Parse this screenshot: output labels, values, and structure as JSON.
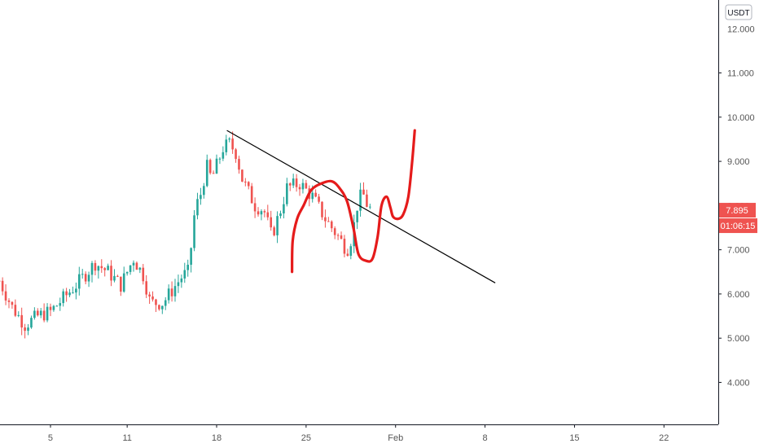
{
  "chart_data": {
    "type": "candlestick",
    "currency": "USDT",
    "y_ticks": [
      "4.000",
      "5.000",
      "6.000",
      "7.000",
      "8.000",
      "9.000",
      "10.000",
      "11.000"
    ],
    "y_top_label_partial": "12.000",
    "ylim": [
      3.05,
      12.65
    ],
    "x_ticks": [
      {
        "label": "5",
        "day": 5
      },
      {
        "label": "11",
        "day": 11
      },
      {
        "label": "18",
        "day": 18
      },
      {
        "label": "25",
        "day": 25
      },
      {
        "label": "Feb",
        "day": 32
      },
      {
        "label": "8",
        "day": 39
      },
      {
        "label": "15",
        "day": 46
      },
      {
        "label": "22",
        "day": 53
      }
    ],
    "xlim": [
      1.05,
      57.25
    ],
    "last_price": "7.895",
    "last_price_value": 7.895,
    "countdown": "01:06:15",
    "price_anchors": [
      {
        "day": 1.0,
        "v": 6.3
      },
      {
        "day": 2.0,
        "v": 5.7
      },
      {
        "day": 3.0,
        "v": 5.3
      },
      {
        "day": 4.0,
        "v": 5.5
      },
      {
        "day": 5.0,
        "v": 5.6
      },
      {
        "day": 6.0,
        "v": 5.9
      },
      {
        "day": 7.0,
        "v": 6.2
      },
      {
        "day": 8.5,
        "v": 6.7
      },
      {
        "day": 9.5,
        "v": 6.5
      },
      {
        "day": 10.5,
        "v": 6.2
      },
      {
        "day": 11.5,
        "v": 6.8
      },
      {
        "day": 12.3,
        "v": 6.4
      },
      {
        "day": 12.8,
        "v": 5.8
      },
      {
        "day": 13.8,
        "v": 5.8
      },
      {
        "day": 14.8,
        "v": 6.2
      },
      {
        "day": 15.3,
        "v": 6.4
      },
      {
        "day": 15.8,
        "v": 6.5
      },
      {
        "day": 16.3,
        "v": 7.9
      },
      {
        "day": 16.8,
        "v": 8.3
      },
      {
        "day": 17.2,
        "v": 8.9
      },
      {
        "day": 17.6,
        "v": 8.6
      },
      {
        "day": 18.0,
        "v": 8.9
      },
      {
        "day": 18.5,
        "v": 9.3
      },
      {
        "day": 19.0,
        "v": 9.4
      },
      {
        "day": 19.5,
        "v": 9.2
      },
      {
        "day": 20.0,
        "v": 8.6
      },
      {
        "day": 21.0,
        "v": 8.0
      },
      {
        "day": 21.7,
        "v": 7.9
      },
      {
        "day": 22.3,
        "v": 7.3
      },
      {
        "day": 23.0,
        "v": 7.9
      },
      {
        "day": 23.5,
        "v": 8.4
      },
      {
        "day": 24.5,
        "v": 8.5
      },
      {
        "day": 25.5,
        "v": 8.2
      },
      {
        "day": 26.5,
        "v": 7.7
      },
      {
        "day": 27.5,
        "v": 7.3
      },
      {
        "day": 28.2,
        "v": 7.0
      },
      {
        "day": 28.6,
        "v": 7.3
      },
      {
        "day": 29.0,
        "v": 8.0
      },
      {
        "day": 29.4,
        "v": 8.3
      },
      {
        "day": 29.8,
        "v": 8.0
      },
      {
        "day": 30.1,
        "v": 7.895
      }
    ],
    "trendline": {
      "start": {
        "day": 18.8,
        "v": 9.7
      },
      "end": {
        "day": 39.8,
        "v": 6.25
      }
    },
    "drawing_points": [
      {
        "day": 23.9,
        "v": 6.5
      },
      {
        "day": 23.95,
        "v": 7.2
      },
      {
        "day": 24.3,
        "v": 7.7
      },
      {
        "day": 24.8,
        "v": 8.0
      },
      {
        "day": 25.4,
        "v": 8.35
      },
      {
        "day": 26.2,
        "v": 8.5
      },
      {
        "day": 27.0,
        "v": 8.55
      },
      {
        "day": 27.6,
        "v": 8.4
      },
      {
        "day": 28.2,
        "v": 8.1
      },
      {
        "day": 28.7,
        "v": 7.5
      },
      {
        "day": 29.1,
        "v": 6.9
      },
      {
        "day": 29.7,
        "v": 6.75
      },
      {
        "day": 30.2,
        "v": 6.8
      },
      {
        "day": 30.6,
        "v": 7.3
      },
      {
        "day": 30.9,
        "v": 8.0
      },
      {
        "day": 31.3,
        "v": 8.2
      },
      {
        "day": 31.6,
        "v": 7.95
      },
      {
        "day": 31.8,
        "v": 7.75
      },
      {
        "day": 32.2,
        "v": 7.7
      },
      {
        "day": 32.6,
        "v": 7.8
      },
      {
        "day": 33.0,
        "v": 8.2
      },
      {
        "day": 33.3,
        "v": 9.0
      },
      {
        "day": 33.5,
        "v": 9.7
      }
    ],
    "colors": {
      "up": "#26a69a",
      "down": "#ef5350",
      "trendline": "#000000",
      "drawing": "#e51b1b",
      "price_label_bg": "#ef5350",
      "axis_text": "#555555",
      "axis_line": "#131722"
    }
  }
}
